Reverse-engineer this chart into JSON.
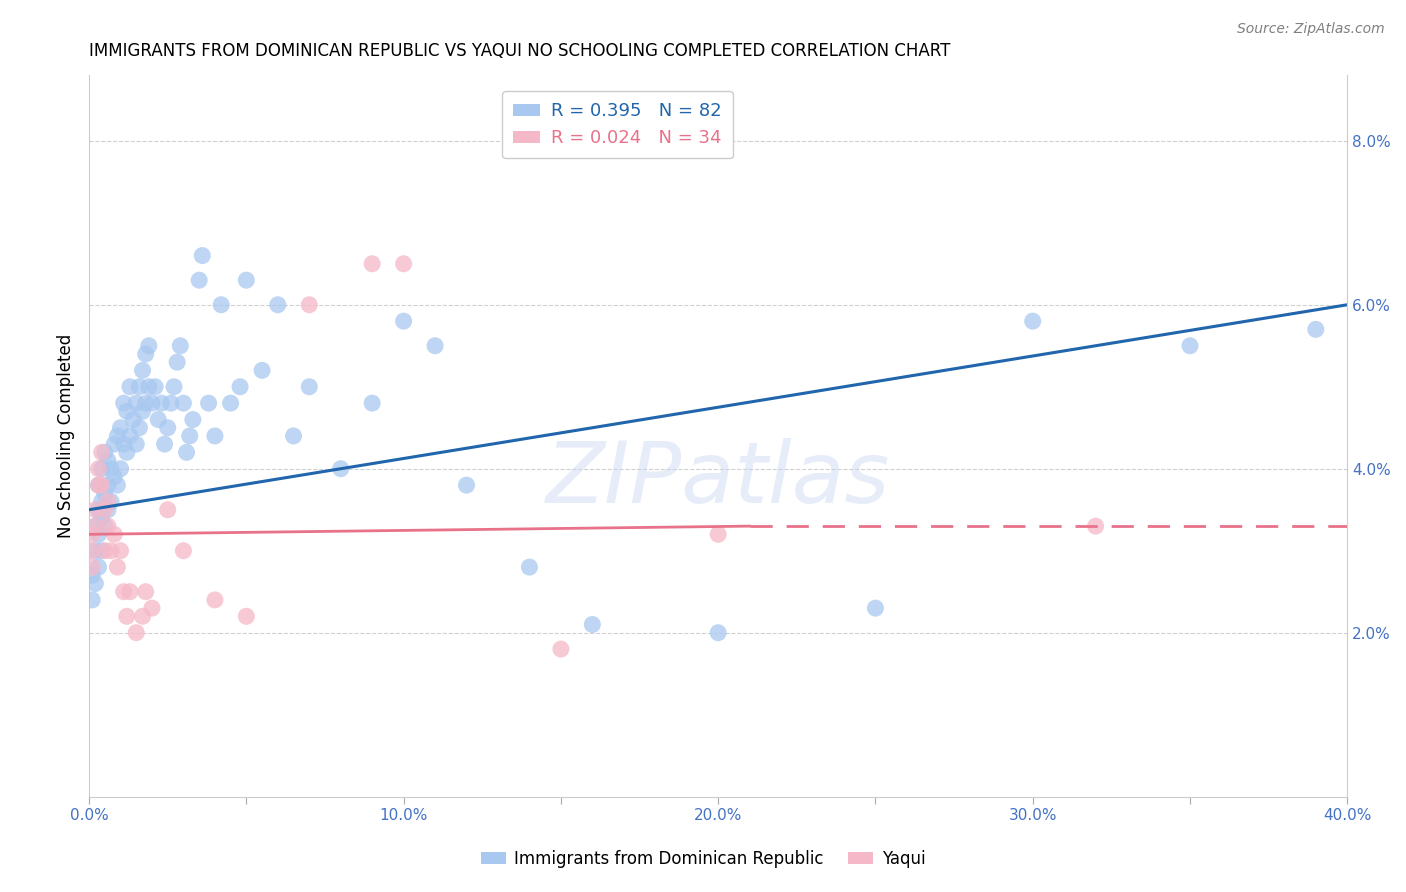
{
  "title": "IMMIGRANTS FROM DOMINICAN REPUBLIC VS YAQUI NO SCHOOLING COMPLETED CORRELATION CHART",
  "source": "Source: ZipAtlas.com",
  "ylabel": "No Schooling Completed",
  "xlim": [
    0.0,
    0.4
  ],
  "ylim": [
    0.0,
    0.088
  ],
  "xticks": [
    0.0,
    0.05,
    0.1,
    0.15,
    0.2,
    0.25,
    0.3,
    0.35,
    0.4
  ],
  "xticklabels": [
    "0.0%",
    "",
    "10.0%",
    "",
    "20.0%",
    "",
    "30.0%",
    "",
    "40.0%"
  ],
  "yticks_right": [
    0.02,
    0.04,
    0.06,
    0.08
  ],
  "ytick_right_labels": [
    "2.0%",
    "4.0%",
    "6.0%",
    "8.0%"
  ],
  "blue_color": "#a8c8f0",
  "pink_color": "#f5b8c8",
  "blue_line_color": "#2166ac",
  "pink_line_color": "#e8728a",
  "legend_R1": "R = 0.395",
  "legend_N1": "N = 82",
  "legend_R2": "R = 0.024",
  "legend_N2": "N = 34",
  "blue_x": [
    0.001,
    0.001,
    0.002,
    0.002,
    0.002,
    0.003,
    0.003,
    0.003,
    0.003,
    0.004,
    0.004,
    0.004,
    0.004,
    0.005,
    0.005,
    0.005,
    0.006,
    0.006,
    0.006,
    0.007,
    0.007,
    0.008,
    0.008,
    0.009,
    0.009,
    0.01,
    0.01,
    0.011,
    0.011,
    0.012,
    0.012,
    0.013,
    0.013,
    0.014,
    0.015,
    0.015,
    0.016,
    0.016,
    0.017,
    0.017,
    0.018,
    0.018,
    0.019,
    0.019,
    0.02,
    0.021,
    0.022,
    0.023,
    0.024,
    0.025,
    0.026,
    0.027,
    0.028,
    0.029,
    0.03,
    0.031,
    0.032,
    0.033,
    0.035,
    0.036,
    0.038,
    0.04,
    0.042,
    0.045,
    0.048,
    0.05,
    0.055,
    0.06,
    0.065,
    0.07,
    0.08,
    0.09,
    0.1,
    0.11,
    0.12,
    0.14,
    0.16,
    0.2,
    0.25,
    0.3,
    0.35,
    0.39
  ],
  "blue_y": [
    0.027,
    0.024,
    0.03,
    0.026,
    0.033,
    0.028,
    0.032,
    0.035,
    0.038,
    0.03,
    0.034,
    0.036,
    0.04,
    0.033,
    0.037,
    0.042,
    0.035,
    0.038,
    0.041,
    0.036,
    0.04,
    0.039,
    0.043,
    0.038,
    0.044,
    0.04,
    0.045,
    0.043,
    0.048,
    0.042,
    0.047,
    0.044,
    0.05,
    0.046,
    0.043,
    0.048,
    0.045,
    0.05,
    0.047,
    0.052,
    0.048,
    0.054,
    0.05,
    0.055,
    0.048,
    0.05,
    0.046,
    0.048,
    0.043,
    0.045,
    0.048,
    0.05,
    0.053,
    0.055,
    0.048,
    0.042,
    0.044,
    0.046,
    0.063,
    0.066,
    0.048,
    0.044,
    0.06,
    0.048,
    0.05,
    0.063,
    0.052,
    0.06,
    0.044,
    0.05,
    0.04,
    0.048,
    0.058,
    0.055,
    0.038,
    0.028,
    0.021,
    0.02,
    0.023,
    0.058,
    0.055,
    0.057
  ],
  "pink_x": [
    0.001,
    0.001,
    0.001,
    0.002,
    0.002,
    0.003,
    0.003,
    0.004,
    0.004,
    0.005,
    0.005,
    0.006,
    0.006,
    0.007,
    0.008,
    0.009,
    0.01,
    0.011,
    0.012,
    0.013,
    0.015,
    0.017,
    0.018,
    0.02,
    0.025,
    0.03,
    0.04,
    0.05,
    0.07,
    0.09,
    0.1,
    0.15,
    0.2,
    0.32
  ],
  "pink_y": [
    0.032,
    0.028,
    0.03,
    0.035,
    0.033,
    0.038,
    0.04,
    0.042,
    0.038,
    0.035,
    0.03,
    0.036,
    0.033,
    0.03,
    0.032,
    0.028,
    0.03,
    0.025,
    0.022,
    0.025,
    0.02,
    0.022,
    0.025,
    0.023,
    0.035,
    0.03,
    0.024,
    0.022,
    0.06,
    0.065,
    0.065,
    0.018,
    0.032,
    0.033
  ],
  "blue_line_x0": 0.0,
  "blue_line_y0": 0.035,
  "blue_line_x1": 0.4,
  "blue_line_y1": 0.06,
  "pink_line_solid_x0": 0.0,
  "pink_line_solid_y0": 0.032,
  "pink_line_solid_x1": 0.21,
  "pink_line_solid_y1": 0.033,
  "pink_line_dash_x0": 0.21,
  "pink_line_dash_y0": 0.033,
  "pink_line_dash_x1": 0.4,
  "pink_line_dash_y1": 0.033,
  "watermark": "ZIPatlas",
  "background_color": "#ffffff",
  "grid_color": "#d0d0d0"
}
